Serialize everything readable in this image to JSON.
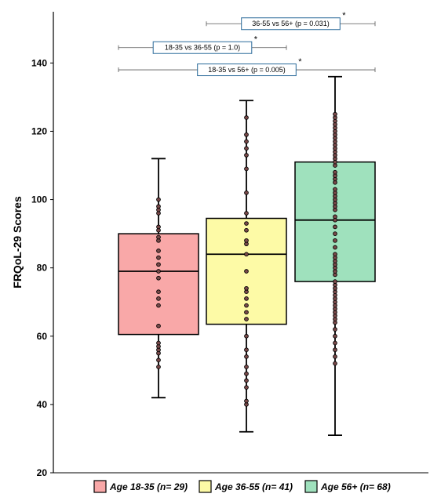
{
  "chart_data": {
    "type": "box",
    "ylabel": "FRQoL-29 Scores",
    "xlabel": "",
    "ylim": [
      20,
      155
    ],
    "yticks": [
      20,
      40,
      60,
      80,
      100,
      120,
      140
    ],
    "grid": false,
    "legend_position": "bottom",
    "series": [
      {
        "name": "Age 18-35",
        "n_label": "(n= 29)",
        "color": "#f9a8a8",
        "min": 42,
        "q1": 60.5,
        "median": 79,
        "q3": 90,
        "max": 112,
        "points": [
          51,
          53,
          55,
          56,
          57,
          58,
          63,
          69,
          71,
          73,
          77,
          79,
          81,
          83,
          85,
          88,
          89,
          91,
          92,
          96,
          97,
          98,
          100
        ]
      },
      {
        "name": "Age 36-55",
        "n_label": "(n= 41)",
        "color": "#fdfaa6",
        "min": 32,
        "q1": 63.5,
        "median": 84,
        "q3": 94.5,
        "max": 129,
        "points": [
          40,
          41,
          45,
          47,
          49,
          51,
          54,
          56,
          60,
          65,
          67,
          69,
          71,
          73,
          74,
          79,
          84,
          87,
          88,
          91,
          93,
          96,
          102,
          109,
          113,
          115,
          117,
          119,
          124
        ]
      },
      {
        "name": "Age 56+",
        "n_label": "(n= 68)",
        "color": "#9fe1bd",
        "min": 31,
        "q1": 76,
        "median": 94,
        "q3": 111,
        "max": 136,
        "points": [
          52,
          54,
          56,
          58,
          60,
          62,
          64,
          65,
          66,
          67,
          68,
          69,
          70,
          71,
          72,
          73,
          74,
          75,
          76,
          78,
          79,
          80,
          81,
          82,
          83,
          84,
          86,
          88,
          90,
          92,
          94,
          95,
          97,
          98,
          99,
          100,
          101,
          102,
          103,
          105,
          106,
          107,
          108,
          110,
          111,
          112,
          113,
          114,
          115,
          116,
          117,
          118,
          119,
          120,
          121,
          122,
          123,
          124,
          125
        ]
      }
    ],
    "annotations": [
      {
        "from": 0,
        "to": 2,
        "y": 138,
        "label": "18-35 vs 56+ (p = 0.005)",
        "star": "*"
      },
      {
        "from": 0,
        "to": 1,
        "y": 144.5,
        "label": "18-35 vs 36-55 (p = 1.0)",
        "star": "*"
      },
      {
        "from": 1,
        "to": 2,
        "y": 151.5,
        "label": "36-55 vs 56+ (p = 0.031)",
        "star": "*"
      }
    ]
  }
}
